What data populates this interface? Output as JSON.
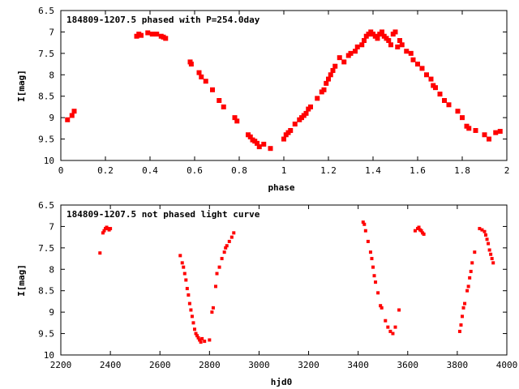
{
  "colors": {
    "points": "#ff0000",
    "axes": "#000000",
    "background": "#ffffff"
  },
  "chart_data": [
    {
      "type": "scatter",
      "title": "184809-1207.5 phased with P=254.0day",
      "xlabel": "phase",
      "ylabel": "I[mag]",
      "xlim": [
        0,
        2
      ],
      "ylim": [
        6.5,
        10
      ],
      "y_inverted": true,
      "grid": false,
      "xticks": [
        "0",
        "0.2",
        "0.4",
        "0.6",
        "0.8",
        "1",
        "1.2",
        "1.4",
        "1.6",
        "1.8",
        "2"
      ],
      "yticks": [
        "6.5",
        "7",
        "7.5",
        "8",
        "8.5",
        "9",
        "9.5",
        "10"
      ],
      "series": [
        {
          "points": [
            [
              0.03,
              9.05
            ],
            [
              0.05,
              8.95
            ],
            [
              0.06,
              8.85
            ],
            [
              0.34,
              7.1
            ],
            [
              0.35,
              7.05
            ],
            [
              0.36,
              7.08
            ],
            [
              0.39,
              7.02
            ],
            [
              0.41,
              7.05
            ],
            [
              0.43,
              7.05
            ],
            [
              0.45,
              7.1
            ],
            [
              0.46,
              7.12
            ],
            [
              0.47,
              7.15
            ],
            [
              0.58,
              7.7
            ],
            [
              0.585,
              7.75
            ],
            [
              0.62,
              7.95
            ],
            [
              0.63,
              8.05
            ],
            [
              0.65,
              8.15
            ],
            [
              0.68,
              8.35
            ],
            [
              0.71,
              8.6
            ],
            [
              0.73,
              8.75
            ],
            [
              0.78,
              9.0
            ],
            [
              0.79,
              9.08
            ],
            [
              0.84,
              9.4
            ],
            [
              0.85,
              9.45
            ],
            [
              0.86,
              9.52
            ],
            [
              0.87,
              9.55
            ],
            [
              0.88,
              9.6
            ],
            [
              0.89,
              9.68
            ],
            [
              0.91,
              9.62
            ],
            [
              0.94,
              9.72
            ],
            [
              1.0,
              9.5
            ],
            [
              1.01,
              9.4
            ],
            [
              1.02,
              9.35
            ],
            [
              1.03,
              9.3
            ],
            [
              1.05,
              9.15
            ],
            [
              1.07,
              9.05
            ],
            [
              1.08,
              9.0
            ],
            [
              1.09,
              8.95
            ],
            [
              1.1,
              8.9
            ],
            [
              1.11,
              8.8
            ],
            [
              1.12,
              8.75
            ],
            [
              1.15,
              8.55
            ],
            [
              1.17,
              8.4
            ],
            [
              1.18,
              8.35
            ],
            [
              1.19,
              8.2
            ],
            [
              1.2,
              8.1
            ],
            [
              1.21,
              8.0
            ],
            [
              1.22,
              7.9
            ],
            [
              1.23,
              7.8
            ],
            [
              1.25,
              7.6
            ],
            [
              1.27,
              7.7
            ],
            [
              1.29,
              7.55
            ],
            [
              1.3,
              7.5
            ],
            [
              1.32,
              7.45
            ],
            [
              1.33,
              7.35
            ],
            [
              1.35,
              7.3
            ],
            [
              1.36,
              7.2
            ],
            [
              1.37,
              7.1
            ],
            [
              1.38,
              7.05
            ],
            [
              1.39,
              7.0
            ],
            [
              1.4,
              7.05
            ],
            [
              1.41,
              7.1
            ],
            [
              1.42,
              7.15
            ],
            [
              1.43,
              7.05
            ],
            [
              1.44,
              7.0
            ],
            [
              1.45,
              7.1
            ],
            [
              1.46,
              7.15
            ],
            [
              1.47,
              7.2
            ],
            [
              1.48,
              7.3
            ],
            [
              1.49,
              7.05
            ],
            [
              1.5,
              7.0
            ],
            [
              1.51,
              7.35
            ],
            [
              1.52,
              7.2
            ],
            [
              1.53,
              7.3
            ],
            [
              1.55,
              7.45
            ],
            [
              1.57,
              7.5
            ],
            [
              1.58,
              7.65
            ],
            [
              1.6,
              7.75
            ],
            [
              1.62,
              7.85
            ],
            [
              1.64,
              8.0
            ],
            [
              1.66,
              8.1
            ],
            [
              1.67,
              8.25
            ],
            [
              1.68,
              8.3
            ],
            [
              1.7,
              8.45
            ],
            [
              1.72,
              8.6
            ],
            [
              1.74,
              8.7
            ],
            [
              1.78,
              8.85
            ],
            [
              1.8,
              9.0
            ],
            [
              1.82,
              9.2
            ],
            [
              1.83,
              9.25
            ],
            [
              1.86,
              9.3
            ],
            [
              1.9,
              9.4
            ],
            [
              1.92,
              9.5
            ],
            [
              1.95,
              9.35
            ],
            [
              1.97,
              9.32
            ]
          ]
        }
      ]
    },
    {
      "type": "scatter",
      "title": "184809-1207.5 not phased light curve",
      "xlabel": "hjd0",
      "ylabel": "I[mag]",
      "xlim": [
        2200,
        4000
      ],
      "ylim": [
        6.5,
        10
      ],
      "y_inverted": true,
      "grid": false,
      "xticks": [
        "2200",
        "2400",
        "2600",
        "2800",
        "3000",
        "3200",
        "3400",
        "3600",
        "3800",
        "4000"
      ],
      "yticks": [
        "6.5",
        "7",
        "7.5",
        "8",
        "8.5",
        "9",
        "9.5",
        "10"
      ],
      "series": [
        {
          "points": [
            [
              2358,
              7.62
            ],
            [
              2370,
              7.15
            ],
            [
              2375,
              7.1
            ],
            [
              2380,
              7.05
            ],
            [
              2385,
              7.02
            ],
            [
              2390,
              7.05
            ],
            [
              2395,
              7.08
            ],
            [
              2400,
              7.05
            ],
            [
              2682,
              7.68
            ],
            [
              2690,
              7.85
            ],
            [
              2695,
              7.95
            ],
            [
              2700,
              8.1
            ],
            [
              2705,
              8.25
            ],
            [
              2710,
              8.45
            ],
            [
              2715,
              8.6
            ],
            [
              2720,
              8.8
            ],
            [
              2725,
              8.95
            ],
            [
              2730,
              9.1
            ],
            [
              2735,
              9.25
            ],
            [
              2740,
              9.4
            ],
            [
              2745,
              9.5
            ],
            [
              2750,
              9.55
            ],
            [
              2755,
              9.6
            ],
            [
              2760,
              9.65
            ],
            [
              2765,
              9.7
            ],
            [
              2770,
              9.62
            ],
            [
              2780,
              9.68
            ],
            [
              2800,
              9.65
            ],
            [
              2810,
              9.0
            ],
            [
              2815,
              8.9
            ],
            [
              2825,
              8.4
            ],
            [
              2830,
              8.1
            ],
            [
              2840,
              7.95
            ],
            [
              2850,
              7.75
            ],
            [
              2860,
              7.6
            ],
            [
              2865,
              7.5
            ],
            [
              2870,
              7.45
            ],
            [
              2880,
              7.35
            ],
            [
              2890,
              7.25
            ],
            [
              2898,
              7.15
            ],
            [
              3420,
              6.9
            ],
            [
              3425,
              6.95
            ],
            [
              3430,
              7.1
            ],
            [
              3440,
              7.35
            ],
            [
              3450,
              7.6
            ],
            [
              3455,
              7.75
            ],
            [
              3460,
              7.95
            ],
            [
              3465,
              8.15
            ],
            [
              3470,
              8.3
            ],
            [
              3480,
              8.55
            ],
            [
              3490,
              8.85
            ],
            [
              3495,
              8.9
            ],
            [
              3510,
              9.2
            ],
            [
              3520,
              9.35
            ],
            [
              3530,
              9.45
            ],
            [
              3540,
              9.5
            ],
            [
              3550,
              9.35
            ],
            [
              3565,
              8.95
            ],
            [
              3630,
              7.1
            ],
            [
              3640,
              7.05
            ],
            [
              3645,
              7.02
            ],
            [
              3650,
              7.08
            ],
            [
              3655,
              7.1
            ],
            [
              3660,
              7.15
            ],
            [
              3665,
              7.18
            ],
            [
              3810,
              9.45
            ],
            [
              3815,
              9.3
            ],
            [
              3820,
              9.1
            ],
            [
              3825,
              8.9
            ],
            [
              3830,
              8.8
            ],
            [
              3840,
              8.5
            ],
            [
              3845,
              8.4
            ],
            [
              3850,
              8.2
            ],
            [
              3855,
              8.05
            ],
            [
              3860,
              7.85
            ],
            [
              3870,
              7.6
            ],
            [
              3890,
              7.05
            ],
            [
              3900,
              7.08
            ],
            [
              3910,
              7.12
            ],
            [
              3915,
              7.2
            ],
            [
              3920,
              7.3
            ],
            [
              3925,
              7.4
            ],
            [
              3930,
              7.55
            ],
            [
              3935,
              7.65
            ],
            [
              3940,
              7.75
            ],
            [
              3945,
              7.85
            ]
          ]
        }
      ]
    }
  ]
}
